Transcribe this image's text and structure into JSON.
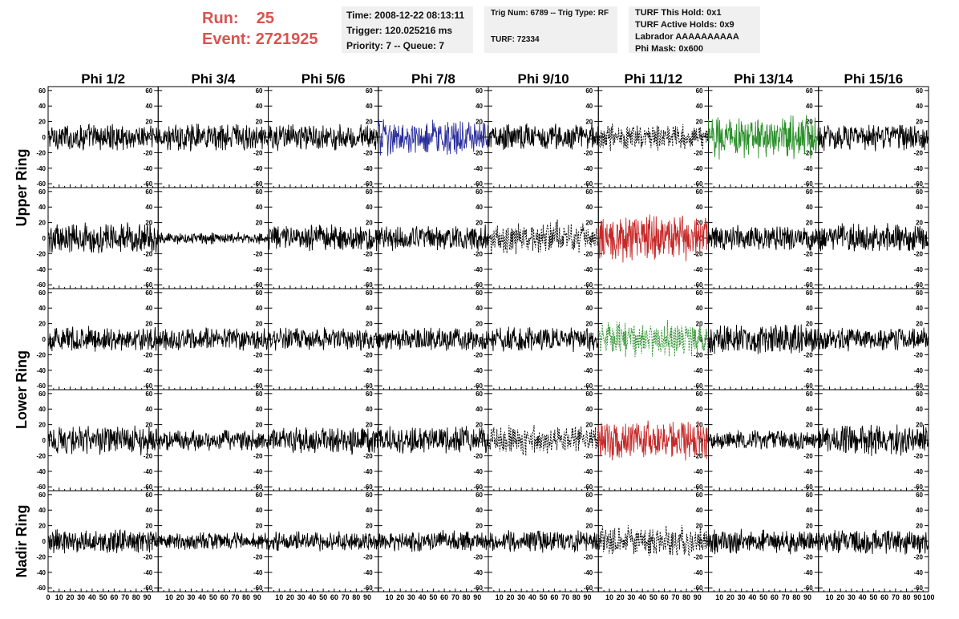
{
  "header": {
    "run_label": "Run:",
    "run_value": "25",
    "event_label": "Event:",
    "event_value": "2721925",
    "time": "Time: 2008-12-22 08:13:11",
    "trigger": "Trigger: 120.025216 ms",
    "priority": "Priority: 7 -- Queue: 7",
    "trig_num": "Trig Num: 6789 -- Trig Type: RF",
    "turf": "TURF: 72334",
    "turf_this_hold": "TURF This Hold: 0x1",
    "turf_active_holds": "TURF Active Holds: 0x9",
    "labrador": "Labrador AAAAAAAAAA",
    "phi_mask": "Phi Mask: 0x600",
    "accent_color": "#d9534f"
  },
  "chart_data": {
    "type": "line",
    "columns": [
      "Phi 1/2",
      "Phi 3/4",
      "Phi 5/6",
      "Phi 7/8",
      "Phi 9/10",
      "Phi 11/12",
      "Phi 13/14",
      "Phi 15/16"
    ],
    "ring_labels": [
      {
        "label": "Upper Ring",
        "rows": [
          0,
          1
        ]
      },
      {
        "label": "Lower Ring",
        "rows": [
          2,
          3
        ]
      },
      {
        "label": "Nadir Ring",
        "rows": [
          4
        ]
      }
    ],
    "xlim": [
      0,
      100
    ],
    "ylim": [
      -65,
      65
    ],
    "y_ticks": [
      -60,
      -40,
      -20,
      0,
      20,
      40,
      60
    ],
    "x_ticks_bottom": [
      0,
      10,
      20,
      30,
      40,
      50,
      60,
      70,
      80,
      90,
      100
    ],
    "samples": 256,
    "panels": [
      [
        {
          "color": "#000000",
          "style": "solid",
          "amp": 14
        },
        {
          "color": "#000000",
          "style": "solid",
          "amp": 14
        },
        {
          "color": "#000000",
          "style": "solid",
          "amp": 14
        },
        {
          "color": "#2b2f9c",
          "style": "solid",
          "amp": 18
        },
        {
          "color": "#000000",
          "style": "solid",
          "amp": 14
        },
        {
          "color": "#000000",
          "style": "dashed",
          "amp": 14
        },
        {
          "color": "#2a8f2a",
          "style": "solid",
          "amp": 22
        },
        {
          "color": "#000000",
          "style": "solid",
          "amp": 14
        }
      ],
      [
        {
          "color": "#000000",
          "style": "solid",
          "amp": 16
        },
        {
          "color": "#000000",
          "style": "solid",
          "amp": 6
        },
        {
          "color": "#000000",
          "style": "solid",
          "amp": 14
        },
        {
          "color": "#000000",
          "style": "solid",
          "amp": 14
        },
        {
          "color": "#000000",
          "style": "dashed",
          "amp": 18
        },
        {
          "color": "#c62828",
          "style": "solid",
          "amp": 24
        },
        {
          "color": "#000000",
          "style": "solid",
          "amp": 13
        },
        {
          "color": "#000000",
          "style": "solid",
          "amp": 15
        }
      ],
      [
        {
          "color": "#000000",
          "style": "solid",
          "amp": 13
        },
        {
          "color": "#000000",
          "style": "solid",
          "amp": 12
        },
        {
          "color": "#000000",
          "style": "solid",
          "amp": 12
        },
        {
          "color": "#000000",
          "style": "solid",
          "amp": 12
        },
        {
          "color": "#000000",
          "style": "solid",
          "amp": 13
        },
        {
          "color": "#2a8f2a",
          "style": "dashed",
          "amp": 20
        },
        {
          "color": "#000000",
          "style": "solid",
          "amp": 16
        },
        {
          "color": "#000000",
          "style": "solid",
          "amp": 12
        }
      ],
      [
        {
          "color": "#000000",
          "style": "solid",
          "amp": 15
        },
        {
          "color": "#000000",
          "style": "solid",
          "amp": 11
        },
        {
          "color": "#000000",
          "style": "solid",
          "amp": 14
        },
        {
          "color": "#000000",
          "style": "solid",
          "amp": 14
        },
        {
          "color": "#000000",
          "style": "dashed",
          "amp": 16
        },
        {
          "color": "#c62828",
          "style": "solid",
          "amp": 20
        },
        {
          "color": "#000000",
          "style": "solid",
          "amp": 10
        },
        {
          "color": "#000000",
          "style": "solid",
          "amp": 16
        }
      ],
      [
        {
          "color": "#000000",
          "style": "solid",
          "amp": 13
        },
        {
          "color": "#000000",
          "style": "solid",
          "amp": 9
        },
        {
          "color": "#000000",
          "style": "solid",
          "amp": 10
        },
        {
          "color": "#000000",
          "style": "solid",
          "amp": 11
        },
        {
          "color": "#000000",
          "style": "solid",
          "amp": 11
        },
        {
          "color": "#000000",
          "style": "dashed",
          "amp": 18
        },
        {
          "color": "#000000",
          "style": "solid",
          "amp": 13
        },
        {
          "color": "#000000",
          "style": "solid",
          "amp": 13
        }
      ]
    ]
  }
}
